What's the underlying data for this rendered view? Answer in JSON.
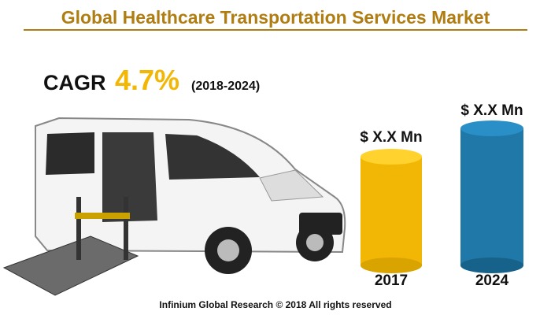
{
  "header": {
    "title": "Global Healthcare Transportation Services Market"
  },
  "cagr": {
    "label": "CAGR",
    "value": "4.7%",
    "period": "(2018-2024)"
  },
  "bars": [
    {
      "label": "$ X.X Mn",
      "year": "2017"
    },
    {
      "label": "$ X.X Mn",
      "year": "2024"
    }
  ],
  "footer": {
    "text": "Infinium Global Research © 2018 All rights reserved"
  }
}
